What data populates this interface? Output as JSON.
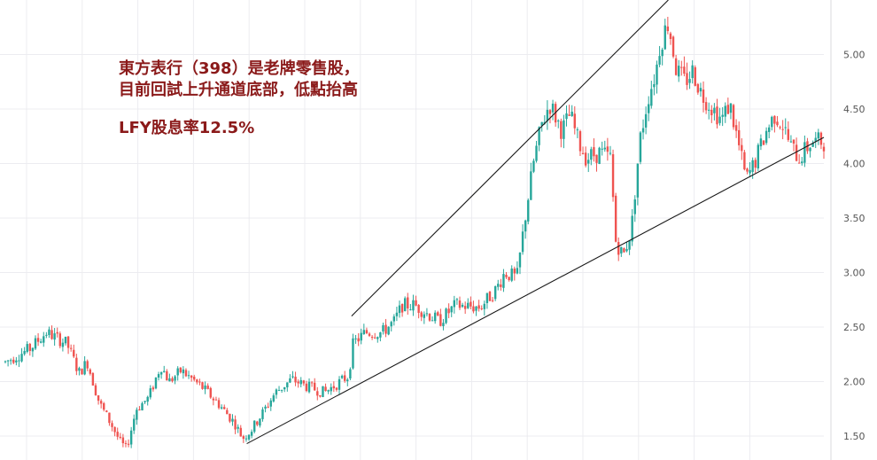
{
  "colors": {
    "up": "#26a69a",
    "down": "#ef5350",
    "grid": "#ececf0",
    "trendline": "#1a1a1a",
    "annotation": "#8b1a1a"
  },
  "annotations": {
    "line1": "東方表行（398）是老牌零售股，",
    "line2": "目前回試上升通道底部，低點抬高",
    "line3": "LFY股息率12.5%"
  },
  "chart_data": {
    "type": "candlestick",
    "title": "",
    "xlabel": "",
    "ylabel": "",
    "y_ticks": [
      "1.50",
      "2.00",
      "2.50",
      "3.00",
      "3.50",
      "4.00",
      "4.50",
      "5.00"
    ],
    "y_tick_values": [
      1.5,
      2.0,
      2.5,
      3.0,
      3.5,
      4.0,
      4.5,
      5.0
    ],
    "ylim": [
      1.28,
      5.5
    ],
    "grid": true,
    "trendlines": [
      {
        "name": "lower channel",
        "from": {
          "bar": 0.295,
          "price": 1.43
        },
        "to": {
          "bar": 1.0,
          "price": 4.24
        }
      },
      {
        "name": "upper channel",
        "from": {
          "bar": 0.423,
          "price": 2.6
        },
        "to": {
          "bar": 0.81,
          "price": 5.5
        }
      }
    ],
    "price_path": [
      [
        0.0,
        2.18
      ],
      [
        0.03,
        2.3
      ],
      [
        0.05,
        2.45
      ],
      [
        0.075,
        2.35
      ],
      [
        0.09,
        2.08
      ],
      [
        0.1,
        2.18
      ],
      [
        0.115,
        1.8
      ],
      [
        0.13,
        1.6
      ],
      [
        0.14,
        1.45
      ],
      [
        0.148,
        1.38
      ],
      [
        0.16,
        1.75
      ],
      [
        0.175,
        1.85
      ],
      [
        0.19,
        2.15
      ],
      [
        0.2,
        2.0
      ],
      [
        0.215,
        2.1
      ],
      [
        0.24,
        1.95
      ],
      [
        0.26,
        1.8
      ],
      [
        0.28,
        1.62
      ],
      [
        0.29,
        1.48
      ],
      [
        0.3,
        1.55
      ],
      [
        0.315,
        1.72
      ],
      [
        0.33,
        1.9
      ],
      [
        0.35,
        2.02
      ],
      [
        0.37,
        1.95
      ],
      [
        0.39,
        1.9
      ],
      [
        0.419,
        2.05
      ],
      [
        0.425,
        2.35
      ],
      [
        0.44,
        2.45
      ],
      [
        0.46,
        2.45
      ],
      [
        0.475,
        2.55
      ],
      [
        0.485,
        2.7
      ],
      [
        0.5,
        2.7
      ],
      [
        0.53,
        2.55
      ],
      [
        0.55,
        2.7
      ],
      [
        0.58,
        2.68
      ],
      [
        0.6,
        2.85
      ],
      [
        0.61,
        3.0
      ],
      [
        0.625,
        2.95
      ],
      [
        0.635,
        3.5
      ],
      [
        0.645,
        4.0
      ],
      [
        0.655,
        4.35
      ],
      [
        0.665,
        4.55
      ],
      [
        0.68,
        4.3
      ],
      [
        0.69,
        4.45
      ],
      [
        0.7,
        4.2
      ],
      [
        0.71,
        4.05
      ],
      [
        0.725,
        4.1
      ],
      [
        0.74,
        4.05
      ],
      [
        0.745,
        3.3
      ],
      [
        0.755,
        3.15
      ],
      [
        0.765,
        3.4
      ],
      [
        0.775,
        4.2
      ],
      [
        0.785,
        4.6
      ],
      [
        0.795,
        4.85
      ],
      [
        0.8,
        5.1
      ],
      [
        0.81,
        5.3
      ],
      [
        0.82,
        4.85
      ],
      [
        0.83,
        4.75
      ],
      [
        0.84,
        4.85
      ],
      [
        0.85,
        4.65
      ],
      [
        0.86,
        4.55
      ],
      [
        0.875,
        4.4
      ],
      [
        0.885,
        4.55
      ],
      [
        0.895,
        4.2
      ],
      [
        0.905,
        3.85
      ],
      [
        0.915,
        4.0
      ],
      [
        0.93,
        4.3
      ],
      [
        0.94,
        4.45
      ],
      [
        0.95,
        4.35
      ],
      [
        0.96,
        4.15
      ],
      [
        0.97,
        4.05
      ],
      [
        0.985,
        4.2
      ]
    ]
  }
}
